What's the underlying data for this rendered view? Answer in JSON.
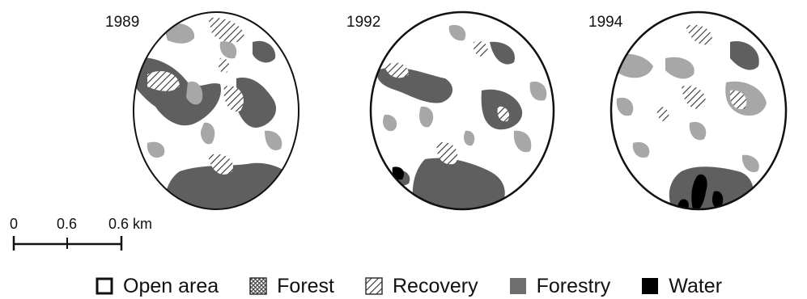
{
  "panels": [
    {
      "year": "1989"
    },
    {
      "year": "1992"
    },
    {
      "year": "1994"
    }
  ],
  "scale_bar": {
    "ticks": [
      "0",
      "0.6",
      "0.6 km"
    ]
  },
  "legend": [
    {
      "label": "Open area",
      "pattern": "solid-outline",
      "color": "#ffffff"
    },
    {
      "label": "Forest",
      "pattern": "crosshatch",
      "color": "#444444"
    },
    {
      "label": "Recovery",
      "pattern": "diagonal-hatch",
      "color": "#333333"
    },
    {
      "label": "Forestry",
      "pattern": "solid",
      "color": "#6e6e6e"
    },
    {
      "label": "Water",
      "pattern": "solid",
      "color": "#000000"
    }
  ],
  "colors": {
    "light_patch": "#a7a7a7",
    "dark_patch": "#5f5f5f",
    "outline": "#111111"
  }
}
